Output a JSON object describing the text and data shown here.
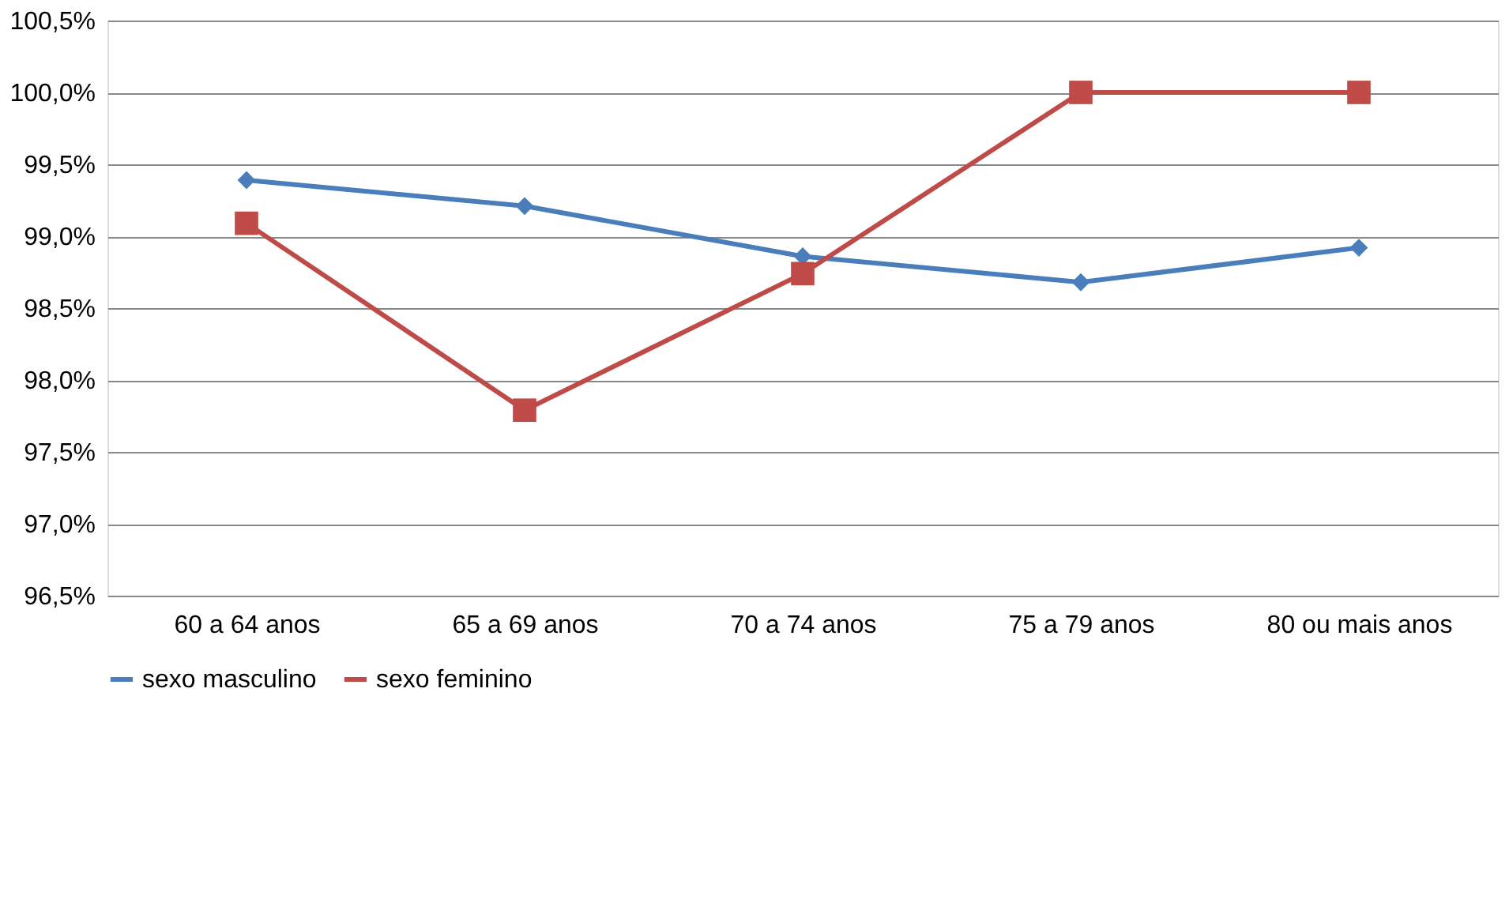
{
  "chart_data": {
    "type": "line",
    "categories": [
      "60 a 64 anos",
      "65 a 69 anos",
      "70 a 74 anos",
      "75 a 79 anos",
      "80 ou mais anos"
    ],
    "series": [
      {
        "name": "sexo masculino",
        "color": "#4a7ebb",
        "marker": "diamond",
        "values": [
          99.39,
          99.21,
          98.86,
          98.68,
          98.92
        ]
      },
      {
        "name": "sexo feminino",
        "color": "#be4b48",
        "marker": "square",
        "values": [
          99.09,
          97.79,
          98.74,
          100.0,
          100.0
        ]
      }
    ],
    "ylim": [
      96.5,
      100.5
    ],
    "yticks": [
      {
        "value": 96.5,
        "label": "96,5%"
      },
      {
        "value": 97.0,
        "label": "97,0%"
      },
      {
        "value": 97.5,
        "label": "97,5%"
      },
      {
        "value": 98.0,
        "label": "98,0%"
      },
      {
        "value": 98.5,
        "label": "98,5%"
      },
      {
        "value": 99.0,
        "label": "99,0%"
      },
      {
        "value": 99.5,
        "label": "99,5%"
      },
      {
        "value": 100.0,
        "label": "100,0%"
      },
      {
        "value": 100.5,
        "label": "100,5%"
      }
    ],
    "grid": "y",
    "legend": "bottom",
    "line_style": "solid"
  }
}
